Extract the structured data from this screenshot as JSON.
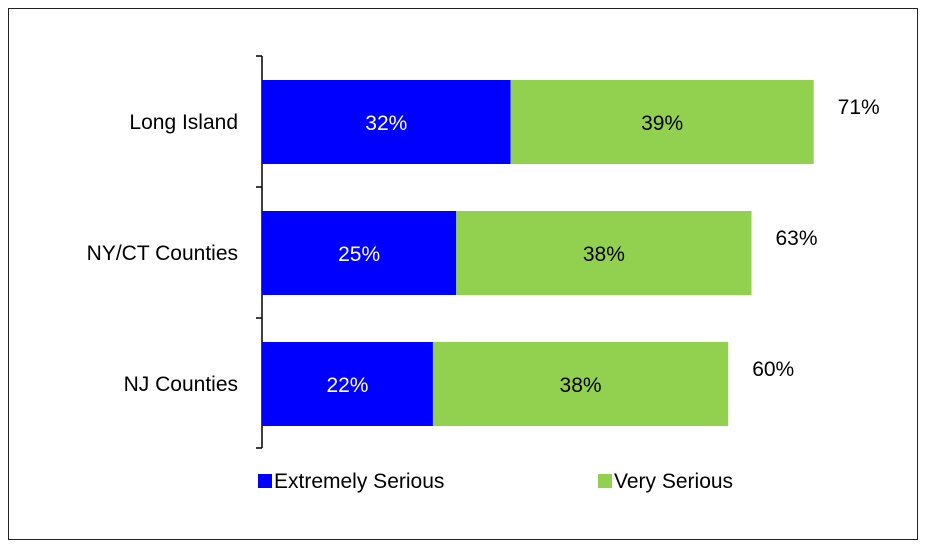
{
  "chart_data": {
    "type": "bar",
    "orientation": "horizontal",
    "stacked": true,
    "categories": [
      "Long Island",
      "NY/CT Counties",
      "NJ Counties"
    ],
    "series": [
      {
        "name": "Extremely Serious",
        "values": [
          32,
          25,
          22
        ],
        "labels": [
          "32%",
          "25%",
          "22%"
        ],
        "color": "#0000FF"
      },
      {
        "name": "Very Serious",
        "values": [
          39,
          38,
          38
        ],
        "labels": [
          "39%",
          "38%",
          "38%"
        ],
        "color": "#92D050"
      }
    ],
    "totals": [
      71,
      63,
      60
    ],
    "total_labels": [
      "71%",
      "63%",
      "60%"
    ],
    "legend_position": "bottom",
    "grid": false
  }
}
